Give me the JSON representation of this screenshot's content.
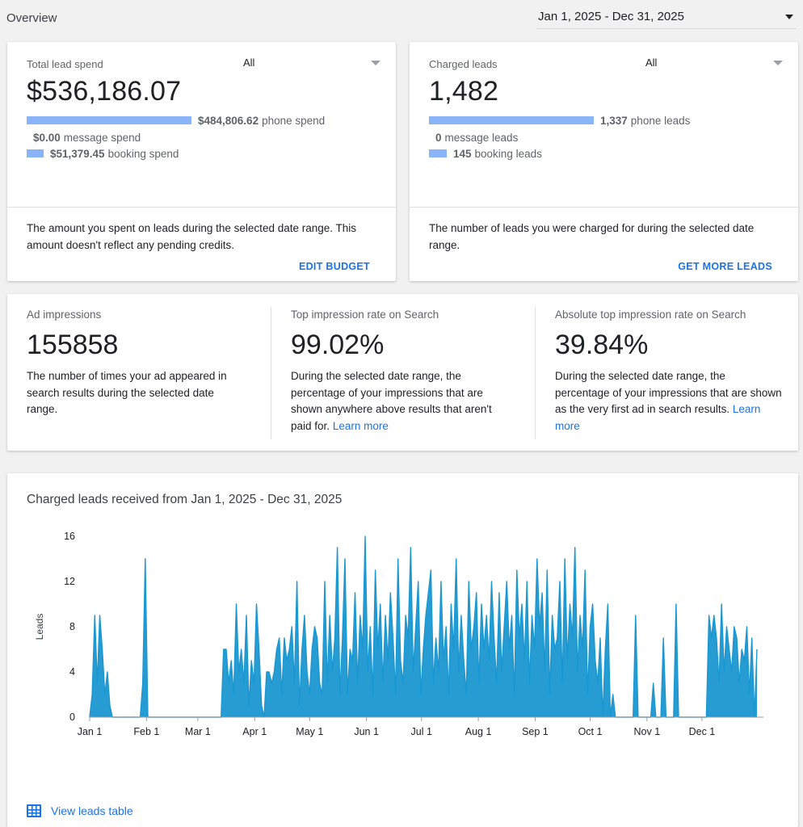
{
  "header": {
    "title": "Overview",
    "date_range": "Jan 1, 2025 - Dec 31, 2025"
  },
  "spend_card": {
    "label": "Total lead spend",
    "filter": "All",
    "total": "$536,186.07",
    "rows": [
      {
        "value": "$484,806.62",
        "label": "phone spend",
        "fraction": 0.904
      },
      {
        "value": "$0.00",
        "label": "message spend",
        "fraction": 0.0
      },
      {
        "value": "$51,379.45",
        "label": "booking spend",
        "fraction": 0.096
      }
    ],
    "description": "The amount you spent on leads during the selected date range. This amount doesn't reflect any pending credits.",
    "action": "EDIT BUDGET"
  },
  "leads_card": {
    "label": "Charged leads",
    "filter": "All",
    "total": "1,482",
    "rows": [
      {
        "value": "1,337",
        "label": "phone leads",
        "fraction": 0.902
      },
      {
        "value": "0",
        "label": "message leads",
        "fraction": 0.0
      },
      {
        "value": "145",
        "label": "booking leads",
        "fraction": 0.098
      }
    ],
    "description": "The number of leads you were charged for during the selected date range.",
    "action": "GET MORE LEADS"
  },
  "stats": [
    {
      "label": "Ad impressions",
      "value": "155858",
      "description": "The number of times your ad appeared in search results during the selected date range.",
      "link": ""
    },
    {
      "label": "Top impression rate on Search",
      "value": "99.02%",
      "description": "During the selected date range, the percentage of your impressions that are shown anywhere above results that aren't paid for.",
      "link": "Learn more"
    },
    {
      "label": "Absolute top impression rate on Search",
      "value": "39.84%",
      "description": "During the selected date range, the percentage of your impressions that are shown as the very first ad in search results.",
      "link": "Learn more"
    }
  ],
  "chart_section": {
    "title": "Charged leads received from Jan 1, 2025 - Dec 31, 2025",
    "table_link": "View leads table"
  },
  "chart_data": {
    "type": "area",
    "title": "Charged leads received from Jan 1, 2025 - Dec 31, 2025",
    "xlabel": "",
    "ylabel": "Leads",
    "ylim": [
      0,
      16
    ],
    "yticks": [
      0,
      4,
      8,
      12,
      16
    ],
    "xticks": [
      "Jan 1",
      "Feb 1",
      "Mar 1",
      "Apr 1",
      "May 1",
      "Jun 1",
      "Jul 1",
      "Aug 1",
      "Sep 1",
      "Oct 1",
      "Nov 1",
      "Dec 1"
    ],
    "xrange": [
      "2025-01-01",
      "2025-12-31"
    ],
    "grid": false,
    "legend": "none",
    "color": "#1a97d1",
    "series": [
      {
        "values": [
          0,
          2,
          9,
          3,
          9,
          6,
          2,
          4,
          1,
          0,
          0,
          0,
          0,
          0,
          0,
          0,
          0,
          0,
          0,
          0,
          0,
          3,
          14,
          0,
          0,
          0,
          0,
          0,
          0,
          0,
          0,
          0,
          0,
          0,
          0,
          0,
          0,
          0,
          0,
          0,
          0,
          0,
          0,
          0,
          0,
          0,
          0,
          0,
          0,
          0,
          0,
          0,
          0,
          6,
          6,
          3,
          5,
          2,
          10,
          4,
          6,
          3,
          9,
          1,
          5,
          3,
          10,
          6,
          1,
          0,
          4,
          4,
          3,
          4,
          6,
          7,
          2,
          7,
          5,
          6,
          8,
          3,
          12,
          1,
          6,
          9,
          4,
          2,
          6,
          8,
          7,
          3,
          2,
          12,
          3,
          9,
          4,
          7,
          15,
          2,
          7,
          14,
          2,
          6,
          5,
          11,
          3,
          9,
          6,
          16,
          4,
          8,
          2,
          13,
          6,
          10,
          3,
          9,
          5,
          11,
          7,
          2,
          14,
          5,
          3,
          9,
          7,
          15,
          4,
          8,
          12,
          2,
          6,
          9,
          11,
          13,
          3,
          7,
          4,
          12,
          5,
          8,
          2,
          10,
          6,
          14,
          4,
          9,
          5,
          2,
          12,
          6,
          8,
          11,
          3,
          10,
          6,
          9,
          5,
          12,
          7,
          3,
          11,
          4,
          8,
          12,
          6,
          9,
          2,
          13,
          7,
          10,
          5,
          12,
          3,
          9,
          6,
          14,
          8,
          11,
          4,
          13,
          2,
          9,
          6,
          7,
          12,
          3,
          14,
          5,
          10,
          7,
          15,
          4,
          9,
          6,
          13,
          2,
          8,
          10,
          5,
          3,
          7,
          0,
          6,
          10,
          0,
          2,
          0,
          0,
          0,
          0,
          0,
          0,
          0,
          0,
          9,
          0,
          0,
          0,
          0,
          0,
          0,
          3,
          0,
          0,
          0,
          7,
          0,
          0,
          0,
          0,
          10,
          0,
          0,
          0,
          0,
          0,
          0,
          0,
          0,
          0,
          0,
          0,
          0,
          9,
          7,
          9,
          7,
          3,
          10,
          4,
          8,
          6,
          4,
          8,
          7,
          3,
          6,
          5,
          8,
          2,
          7,
          0,
          6
        ]
      }
    ]
  }
}
